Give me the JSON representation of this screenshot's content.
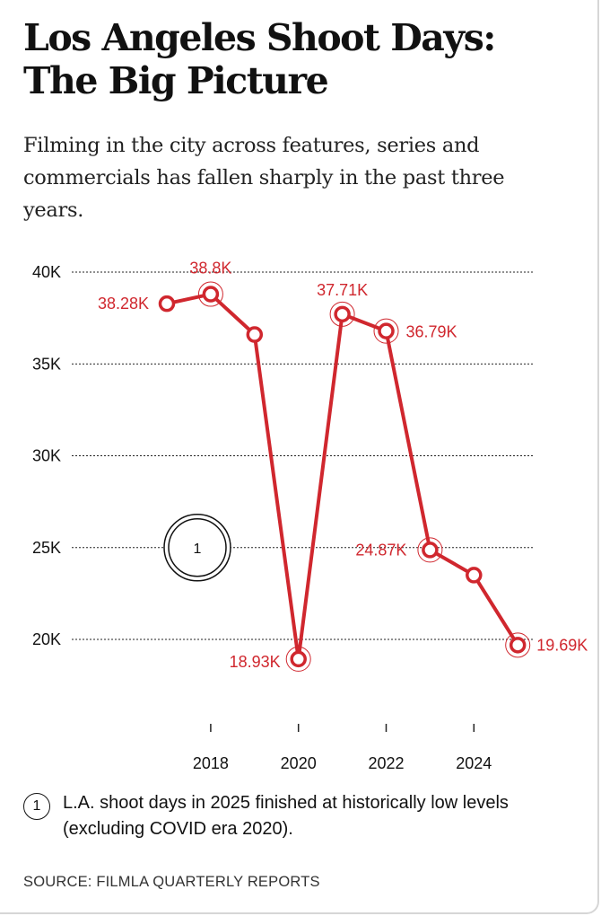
{
  "header": {
    "title": "Los Angeles Shoot Days: The Big Picture",
    "subtitle": "Filming in the city across features, series and commercials has fallen sharply in the past three years."
  },
  "chart_data": {
    "type": "line",
    "title": "Los Angeles Shoot Days: The Big Picture",
    "xlabel": "",
    "ylabel": "",
    "x": [
      2017,
      2018,
      2019,
      2020,
      2021,
      2022,
      2023,
      2024,
      2025
    ],
    "values": [
      38280,
      38800,
      36600,
      18930,
      37710,
      36790,
      24870,
      23500,
      19690
    ],
    "labels": [
      "38.28K",
      "38.8K",
      "",
      "18.93K",
      "37.71K",
      "36.79K",
      "24.87K",
      "",
      "19.69K"
    ],
    "ylim": [
      20000,
      40000
    ],
    "yticks": [
      20000,
      25000,
      30000,
      35000,
      40000
    ],
    "ytick_labels": [
      "20K",
      "25K",
      "30K",
      "35K",
      "40K"
    ],
    "xticks": [
      2018,
      2020,
      2022,
      2024
    ],
    "xtick_labels": [
      "2018",
      "2020",
      "2022",
      "2024"
    ],
    "grid": true,
    "grid_style": "dotted",
    "annotation_marker": {
      "label": "1",
      "x": 2016.7,
      "y": 25000
    },
    "highlighted_points": [
      2018,
      2020,
      2021,
      2022,
      2023,
      2025
    ],
    "colors": {
      "line": "#d0272e",
      "grid": "#222222"
    }
  },
  "footnote": {
    "marker": "1",
    "text": "L.A. shoot days in 2025 finished at historically low levels (excluding COVID era 2020)."
  },
  "source": "SOURCE: FILMLA QUARTERLY REPORTS"
}
